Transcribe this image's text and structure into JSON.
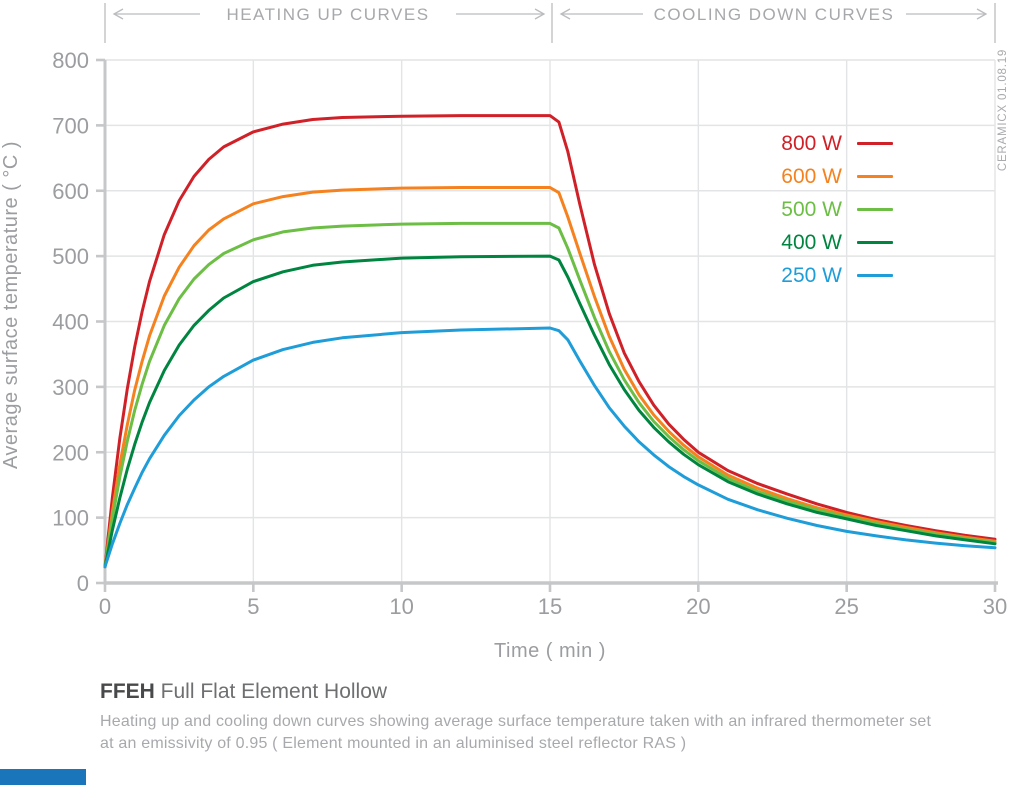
{
  "watermark": "CERAMICX 01.08.19",
  "caption": {
    "title_bold": "FFEH",
    "title_rest": " Full Flat Element Hollow",
    "line1": "Heating up and cooling down curves showing average surface temperature taken with an infrared thermometer set",
    "line2": "at an emissivity of 0.95  ( Element mounted in an aluminised steel reflector RAS )"
  },
  "colors": {
    "axis": "#c6c7c9",
    "grid": "#e3e4e5",
    "axis_text": "#9b9da0",
    "header_text": "#a6a8ab",
    "brand_bar": "#1a75bb"
  },
  "chart_data": {
    "type": "line",
    "title": "",
    "xlabel": "Time ( min )",
    "ylabel": "Average surface temperature ( °C )",
    "xlim": [
      0,
      30
    ],
    "ylim": [
      0,
      800
    ],
    "x_ticks": [
      0,
      5,
      10,
      15,
      20,
      25,
      30
    ],
    "y_ticks": [
      0,
      100,
      200,
      300,
      400,
      500,
      600,
      700,
      800
    ],
    "grid": true,
    "legend_position": "upper right",
    "regions": [
      {
        "label": "HEATING UP CURVES",
        "x_range": [
          0,
          15
        ]
      },
      {
        "label": "COOLING DOWN CURVES",
        "x_range": [
          15,
          30
        ]
      }
    ],
    "x": [
      0,
      0.25,
      0.5,
      0.75,
      1,
      1.25,
      1.5,
      2,
      2.5,
      3,
      3.5,
      4,
      5,
      6,
      7,
      8,
      10,
      12,
      15,
      15.3,
      15.6,
      16,
      16.5,
      17,
      17.5,
      18,
      18.5,
      19,
      19.5,
      20,
      21,
      22,
      23,
      24,
      25,
      26,
      27,
      28,
      29,
      30
    ],
    "series": [
      {
        "name": "800 W",
        "color": "#d02128",
        "values": [
          25,
          131,
          221,
          297,
          361,
          415,
          461,
          533,
          585,
          622,
          648,
          667,
          690,
          702,
          709,
          712,
          714,
          715,
          715,
          705,
          660,
          580,
          487,
          412,
          352,
          308,
          272,
          243,
          220,
          200,
          172,
          152,
          136,
          121,
          108,
          97,
          88,
          80,
          73,
          67
        ]
      },
      {
        "name": "600 W",
        "color": "#f5821f",
        "values": [
          25,
          109,
          181,
          242,
          295,
          339,
          378,
          439,
          483,
          516,
          540,
          557,
          580,
          591,
          598,
          601,
          604,
          605,
          605,
          597,
          560,
          505,
          438,
          377,
          327,
          288,
          257,
          232,
          211,
          193,
          165,
          145,
          129,
          115,
          104,
          94,
          85,
          77,
          70,
          64
        ]
      },
      {
        "name": "500 W",
        "color": "#6cbe45",
        "values": [
          25,
          99,
          162,
          217,
          264,
          304,
          339,
          394,
          435,
          465,
          487,
          504,
          525,
          537,
          543,
          546,
          549,
          550,
          550,
          543,
          512,
          464,
          406,
          354,
          311,
          276,
          247,
          224,
          204,
          187,
          160,
          140,
          125,
          112,
          101,
          91,
          82,
          75,
          68,
          62
        ]
      },
      {
        "name": "400 W",
        "color": "#008540",
        "values": [
          25,
          81,
          130,
          174,
          212,
          246,
          276,
          325,
          364,
          394,
          417,
          436,
          461,
          476,
          486,
          491,
          497,
          499,
          500,
          494,
          468,
          428,
          379,
          334,
          296,
          264,
          238,
          216,
          197,
          181,
          155,
          136,
          121,
          108,
          98,
          88,
          80,
          72,
          66,
          60
        ]
      },
      {
        "name": "250 W",
        "color": "#1f9dd9",
        "values": [
          25,
          60,
          91,
          120,
          145,
          169,
          190,
          226,
          256,
          280,
          300,
          316,
          341,
          357,
          368,
          375,
          383,
          387,
          390,
          386,
          372,
          340,
          302,
          268,
          240,
          216,
          196,
          178,
          163,
          150,
          128,
          112,
          99,
          88,
          79,
          72,
          66,
          61,
          57,
          54
        ]
      }
    ]
  }
}
